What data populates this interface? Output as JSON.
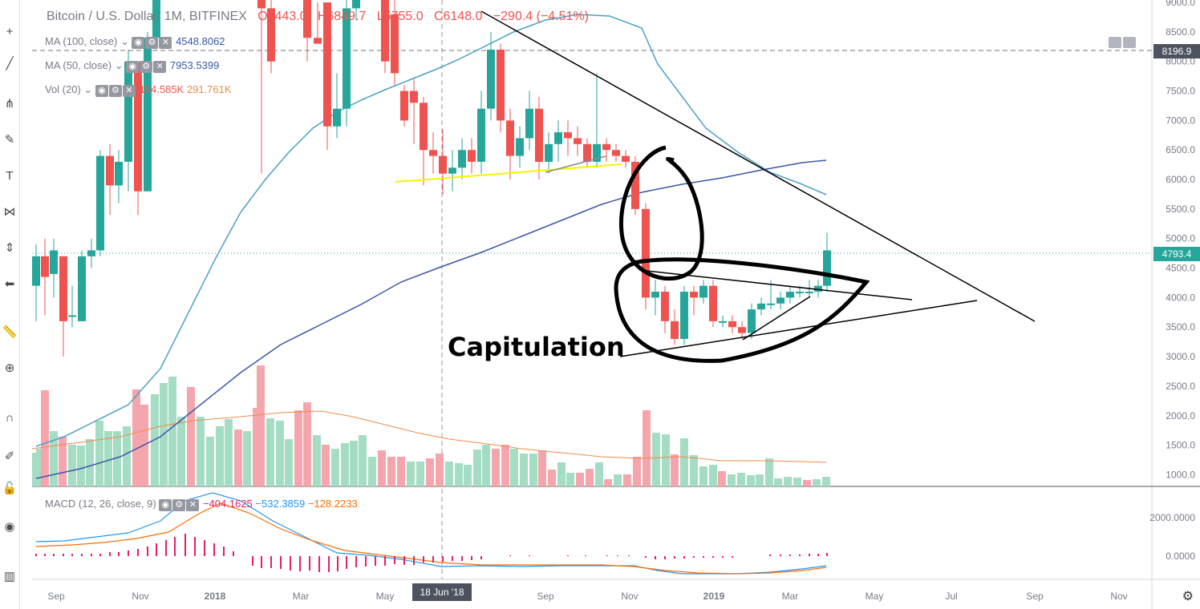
{
  "header": {
    "title": "Bitcoin / U.S. Dollar, 1M, BITFINEX",
    "open": "O6443.0",
    "high": "H6849.7",
    "low": "L5755.0",
    "close": "C6148.0",
    "change": "−290.4 (−4.51%)"
  },
  "indicators": {
    "ma100_label": "MA (100, close)",
    "ma100_value": "4548.8062",
    "ma50_label": "MA (50, close)",
    "ma50_value": "7953.5399",
    "vol_label": "Vol (20)",
    "vol_value1": "194.585K",
    "vol_value2": "291.761K",
    "macd_label": "MACD (12, 26, close, 9)",
    "macd_v1": "−404.1625",
    "macd_v2": "−532.3859",
    "macd_v3": "−128.2233"
  },
  "price_tags": {
    "crosshair": "8196.9",
    "last": "4793.4"
  },
  "annotation": {
    "capitulation": "Capitulation"
  },
  "crosshair_date": "18 Jun '18",
  "colors": {
    "up": "#26a69a",
    "down": "#ef5350",
    "ma100": "#3a57a8",
    "ma50": "#4ca0c4",
    "vol_ma": "#f08a4b",
    "macd": "#2196f3",
    "signal": "#ff6d00",
    "hist": "#e91e63",
    "trend_yellow": "#f5f500"
  },
  "chart_data": {
    "type": "candlestick",
    "price_ticks": [
      "9000.0",
      "8500.0",
      "8000.0",
      "7500.0",
      "7000.0",
      "6500.0",
      "6000.0",
      "5500.0",
      "5000.0",
      "4500.0",
      "4000.0",
      "3500.0",
      "3000.0",
      "2500.0",
      "2000.0",
      "1500.0",
      "1000.0"
    ],
    "macd_ticks": [
      "2000.0000",
      "0.0000"
    ],
    "x_ticks": [
      "Sep",
      "Nov",
      "2018",
      "Mar",
      "May",
      "Sep",
      "Nov",
      "2019",
      "Mar",
      "May",
      "Jul",
      "Sep",
      "Nov"
    ],
    "ylim": [
      850,
      9100
    ]
  }
}
